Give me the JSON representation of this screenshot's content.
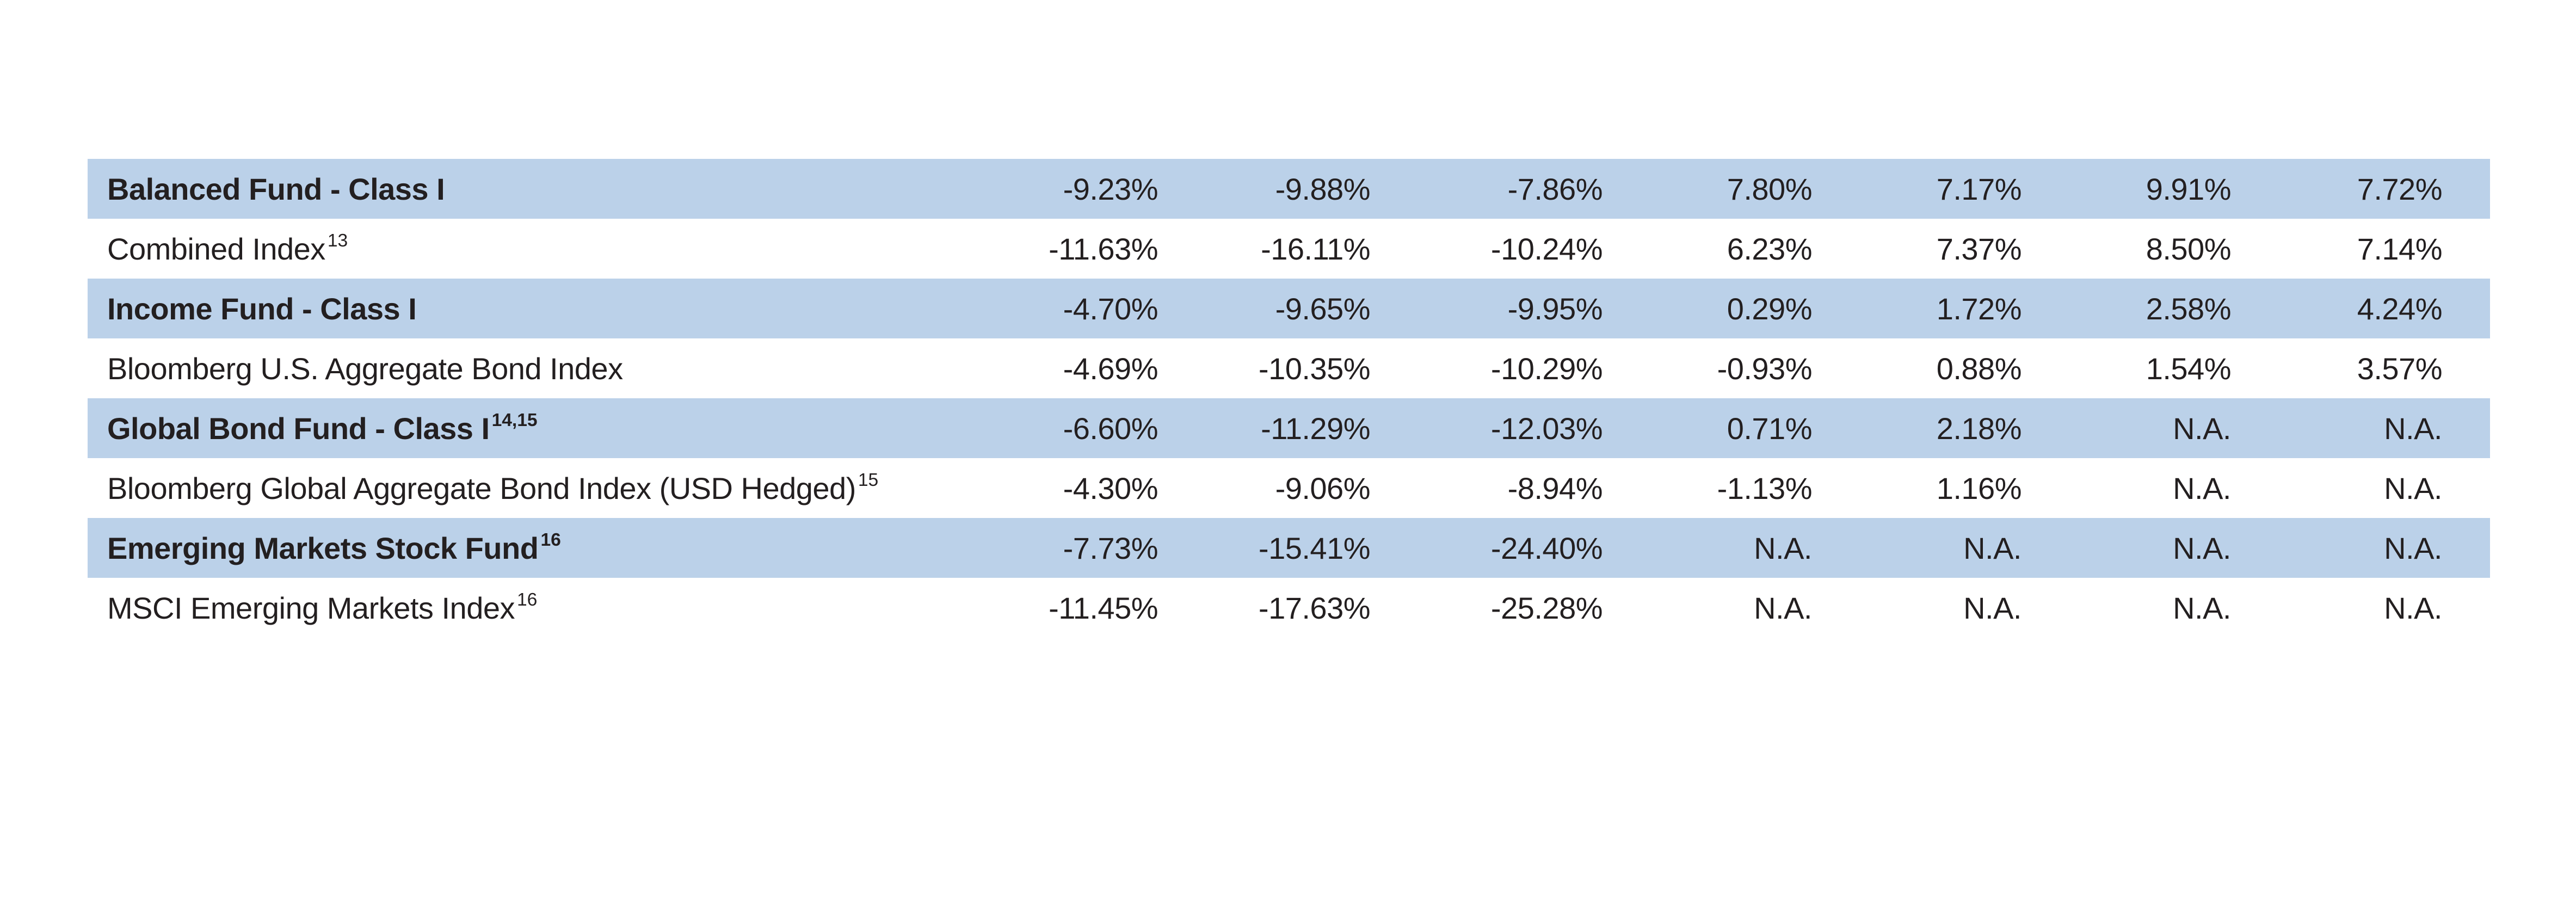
{
  "page": {
    "background_color": "#ffffff",
    "text_color": "#231F20"
  },
  "table": {
    "highlight_color": "#BBD1E9",
    "num_columns": 7,
    "rows": [
      {
        "label": "Balanced Fund - Class I",
        "footnote": "",
        "bold": true,
        "highlighted": true,
        "values": [
          "-9.23%",
          "-9.88%",
          "-7.86%",
          "7.80%",
          "7.17%",
          "9.91%",
          "7.72%"
        ]
      },
      {
        "label": "Combined Index",
        "footnote": "13",
        "bold": false,
        "highlighted": false,
        "values": [
          "-11.63%",
          "-16.11%",
          "-10.24%",
          "6.23%",
          "7.37%",
          "8.50%",
          "7.14%"
        ]
      },
      {
        "label": "Income Fund - Class I",
        "footnote": "",
        "bold": true,
        "highlighted": true,
        "values": [
          "-4.70%",
          "-9.65%",
          "-9.95%",
          "0.29%",
          "1.72%",
          "2.58%",
          "4.24%"
        ]
      },
      {
        "label": "Bloomberg U.S. Aggregate Bond Index",
        "footnote": "",
        "bold": false,
        "highlighted": false,
        "values": [
          "-4.69%",
          "-10.35%",
          "-10.29%",
          "-0.93%",
          "0.88%",
          "1.54%",
          "3.57%"
        ]
      },
      {
        "label": "Global Bond Fund - Class I",
        "footnote": "14,15",
        "bold": true,
        "highlighted": true,
        "values": [
          "-6.60%",
          "-11.29%",
          "-12.03%",
          "0.71%",
          "2.18%",
          "N.A.",
          "N.A."
        ]
      },
      {
        "label": "Bloomberg Global Aggregate Bond Index (USD Hedged)",
        "footnote": "15",
        "bold": false,
        "highlighted": false,
        "values": [
          "-4.30%",
          "-9.06%",
          "-8.94%",
          "-1.13%",
          "1.16%",
          "N.A.",
          "N.A."
        ]
      },
      {
        "label": "Emerging Markets Stock Fund",
        "footnote": "16",
        "bold": true,
        "highlighted": true,
        "values": [
          "-7.73%",
          "-15.41%",
          "-24.40%",
          "N.A.",
          "N.A.",
          "N.A.",
          "N.A."
        ]
      },
      {
        "label": "MSCI Emerging Markets Index",
        "footnote": "16",
        "bold": false,
        "highlighted": false,
        "values": [
          "-11.45%",
          "-17.63%",
          "-25.28%",
          "N.A.",
          "N.A.",
          "N.A.",
          "N.A."
        ]
      }
    ]
  }
}
